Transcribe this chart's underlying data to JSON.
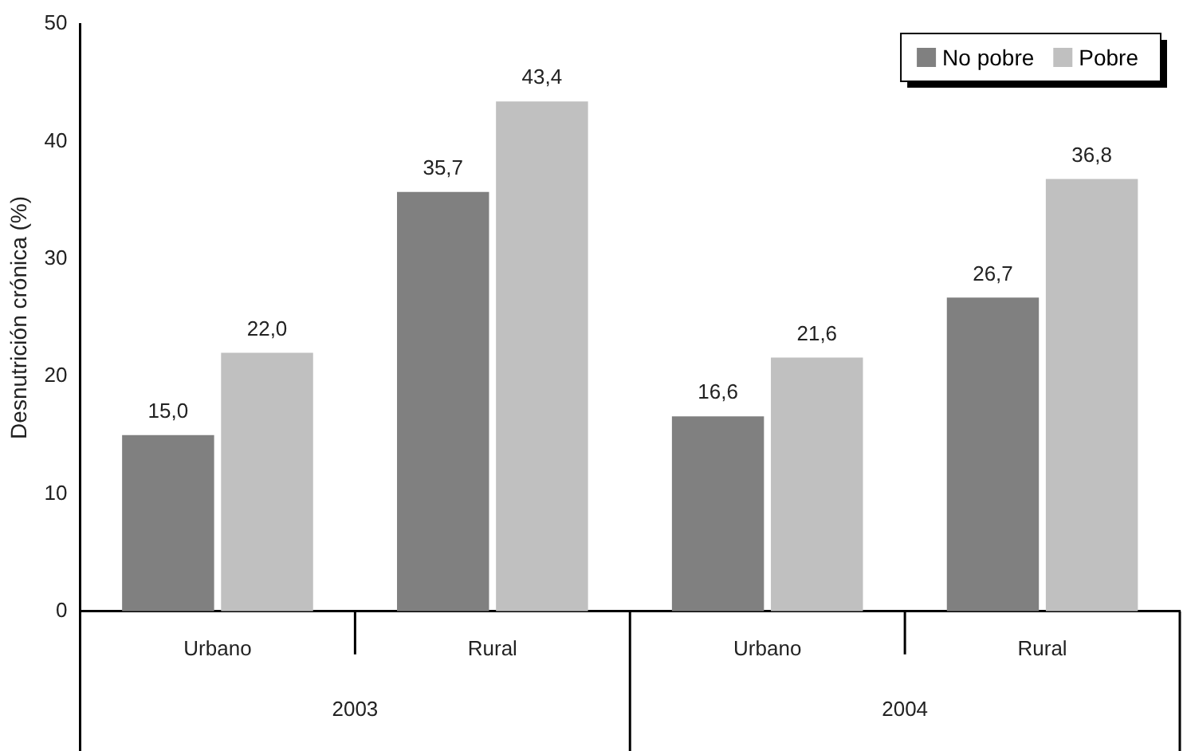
{
  "chart_data": {
    "type": "bar",
    "ylabel": "Desnutrición crónica (%)",
    "categories": [
      "Urbano",
      "Rural",
      "Urbano",
      "Rural"
    ],
    "series": [
      {
        "name": "No pobre",
        "color": "#808080",
        "values": [
          15.0,
          35.7,
          16.6,
          26.7
        ],
        "value_labels": [
          "15,0",
          "35,7",
          "16,6",
          "26,7"
        ]
      },
      {
        "name": "Pobre",
        "color": "#c0c0c0",
        "values": [
          22.0,
          43.4,
          21.6,
          36.8
        ],
        "value_labels": [
          "22,0",
          "43,4",
          "21,6",
          "36,8"
        ]
      }
    ],
    "annotations": [
      "2003",
      "2004"
    ],
    "ylim": [
      0,
      50
    ],
    "yticks": [
      0,
      10,
      20,
      30,
      40,
      50
    ],
    "grid": false,
    "legend": "top right"
  }
}
